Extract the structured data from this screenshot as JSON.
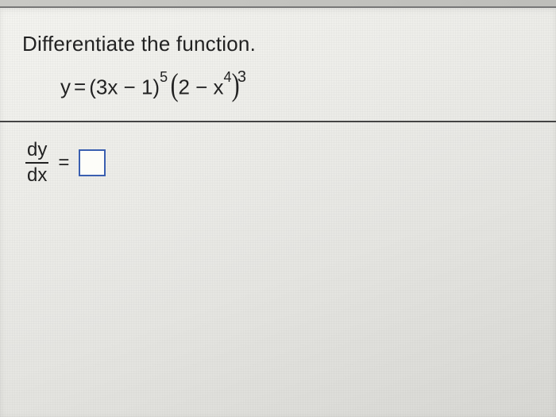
{
  "problem": {
    "prompt": "Differentiate the function.",
    "equation": {
      "lhs": "y",
      "eq": "=",
      "factor1_open": "(",
      "factor1_inner": "3x − 1",
      "factor1_close": ")",
      "factor1_exp": "5",
      "factor2_open": "(",
      "factor2_inner_a": "2 − x",
      "factor2_inner_exp": "4",
      "factor2_close": ")",
      "factor2_exp": "3"
    },
    "derivative": {
      "num": "dy",
      "den": "dx",
      "eq": "="
    }
  },
  "style": {
    "text_color": "#222222",
    "divider_color": "#444444",
    "box_border_color": "#3a5fb0",
    "font_family": "Arial, sans-serif",
    "prompt_fontsize": 26,
    "equation_fontsize": 26,
    "background_gradient": [
      "#f4f4f0",
      "#d8d8d4"
    ]
  }
}
